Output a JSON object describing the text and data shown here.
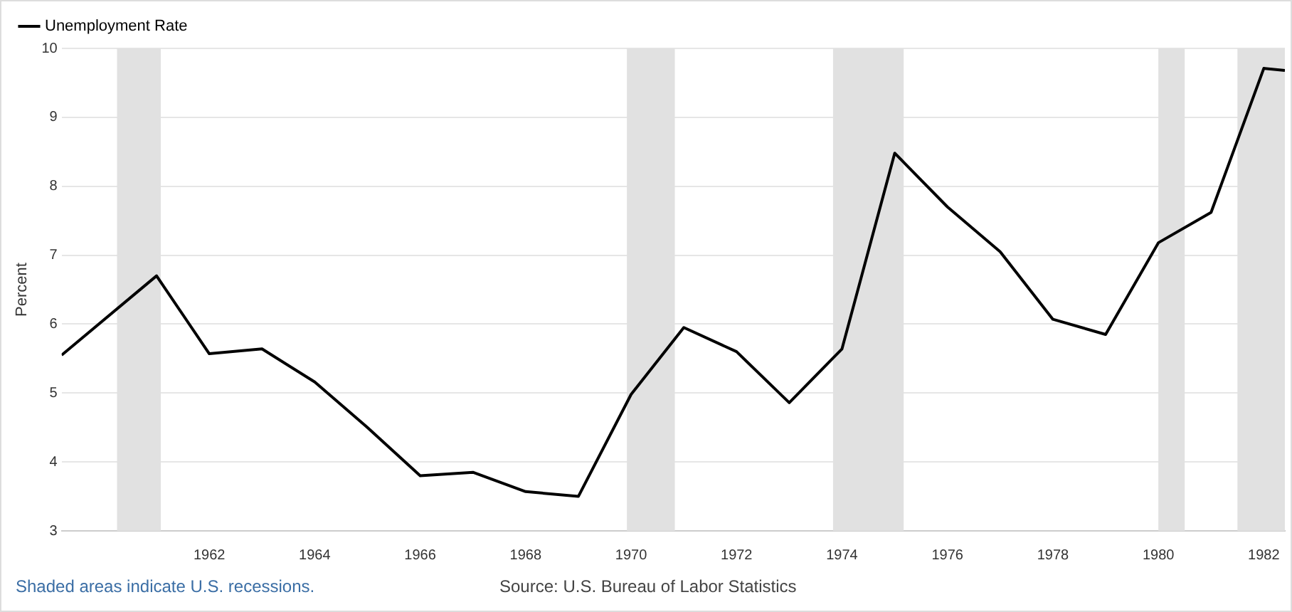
{
  "chart_data": {
    "type": "line",
    "ylabel": "Percent",
    "x": [
      1959.2,
      1961,
      1962,
      1963,
      1964,
      1965,
      1966,
      1967,
      1968,
      1969,
      1970,
      1971,
      1972,
      1973,
      1974,
      1975,
      1976,
      1977,
      1978,
      1979,
      1980,
      1981,
      1982,
      1982.4
    ],
    "series": [
      {
        "name": "Unemployment Rate",
        "color": "#000000",
        "values": [
          5.55,
          6.7,
          5.57,
          5.64,
          5.16,
          4.5,
          3.8,
          3.85,
          3.57,
          3.5,
          4.98,
          5.95,
          5.6,
          4.86,
          5.64,
          8.48,
          7.7,
          7.05,
          6.07,
          5.85,
          7.18,
          7.62,
          9.71,
          9.68
        ]
      }
    ],
    "xlim": [
      1959.2,
      1982.4
    ],
    "xticks": [
      1962,
      1964,
      1966,
      1968,
      1970,
      1972,
      1974,
      1976,
      1978,
      1980,
      1982
    ],
    "ylim": [
      3,
      10
    ],
    "yticks": [
      3,
      4,
      5,
      6,
      7,
      8,
      9,
      10
    ],
    "bands": [
      {
        "axis": "x",
        "from": 1960.25,
        "to": 1961.08,
        "color": "#e1e1e1"
      },
      {
        "axis": "x",
        "from": 1969.92,
        "to": 1970.83,
        "color": "#e1e1e1"
      },
      {
        "axis": "x",
        "from": 1973.83,
        "to": 1975.17,
        "color": "#e1e1e1"
      },
      {
        "axis": "x",
        "from": 1980,
        "to": 1980.5,
        "color": "#e1e1e1"
      },
      {
        "axis": "x",
        "from": 1981.5,
        "to": 1982.4,
        "color": "#e1e1e1"
      }
    ],
    "grid": "y",
    "legend": "top left",
    "marker": "none",
    "line_style": "solid",
    "annotations": [
      "Shaded areas indicate U.S. recessions.",
      "Source: U.S. Bureau of Labor Statistics"
    ]
  }
}
